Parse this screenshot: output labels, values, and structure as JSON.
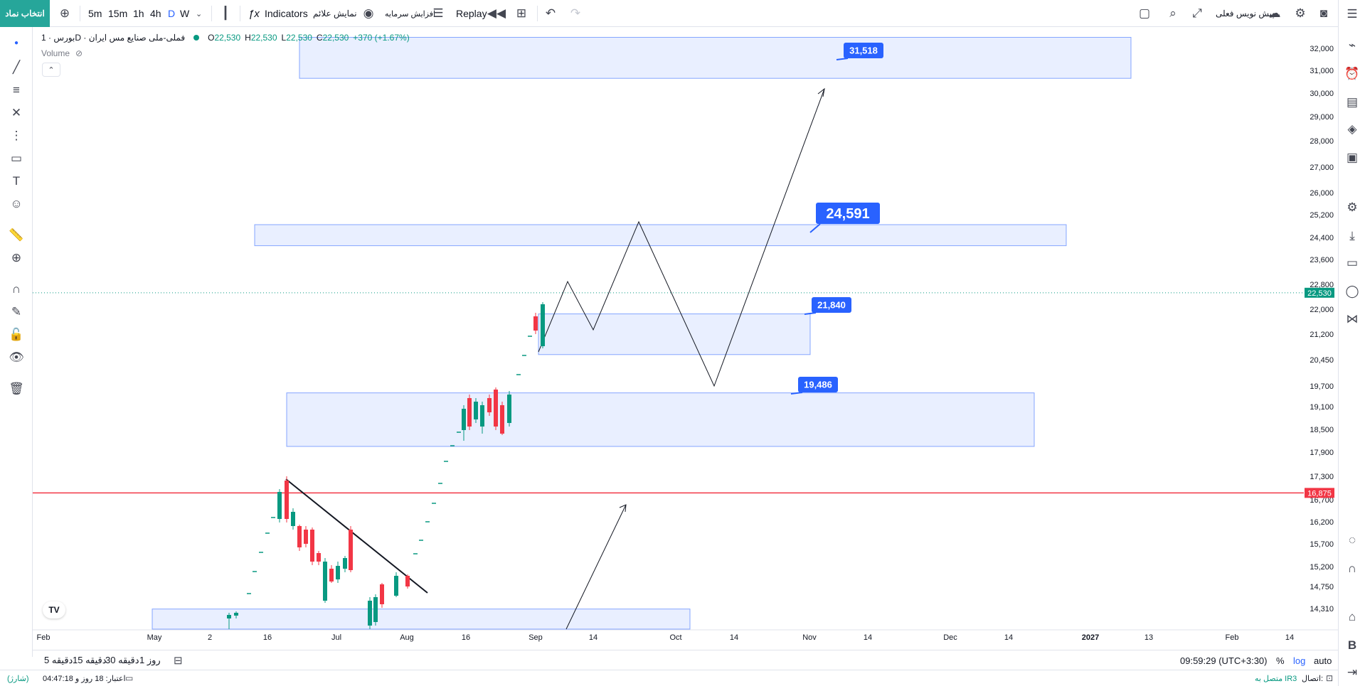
{
  "toolbar": {
    "symbol_button": "انتخاب نماد",
    "intervals": [
      "5m",
      "15m",
      "1h",
      "4h",
      "D",
      "W"
    ],
    "active_interval": "D",
    "indicators_label": "Indicators",
    "show_signals_label": "نمایش علائم",
    "capital_increase_label": "افزایش سرمایه",
    "replay_label": "Replay",
    "right_label": "پیش نویس فعلی"
  },
  "legend": {
    "symbol_title": "بورس · 1D · فملی-ملی صنایع مس ایران",
    "open_label": "O",
    "open": "22,530",
    "high_label": "H",
    "high": "22,530",
    "low_label": "L",
    "low": "22,530",
    "close_label": "C",
    "close": "22,530",
    "change": "+370 (+1.67%)",
    "volume_label": "Volume"
  },
  "colors": {
    "up": "#089981",
    "down": "#f23645",
    "box_fill": "#2962ff",
    "label_bg": "#2962ff",
    "hline": "#f23645",
    "price_line": "#089981"
  },
  "price_axis": {
    "ticks": [
      "32,000",
      "31,000",
      "30,000",
      "29,000",
      "28,000",
      "27,000",
      "26,000",
      "25,200",
      "24,400",
      "23,600",
      "22,800",
      "22,000",
      "21,200",
      "20,450",
      "19,700",
      "19,100",
      "18,500",
      "17,900",
      "17,300",
      "16,700",
      "16,200",
      "15,700",
      "15,200",
      "14,750",
      "14,310"
    ],
    "current_price": "22,530",
    "hline_price": "16,875"
  },
  "time_axis": {
    "ticks": [
      "Feb",
      "May",
      "2",
      "16",
      "Jul",
      "Aug",
      "16",
      "Sep",
      "14",
      "Oct",
      "14",
      "Nov",
      "14",
      "Dec",
      "14",
      "2027",
      "13",
      "Feb",
      "14"
    ]
  },
  "chart_data": {
    "type": "candlestick",
    "price_labels": [
      "31,518",
      "24,591",
      "21,840",
      "19,486"
    ],
    "zones": [
      {
        "from": 30650,
        "to": 32500
      },
      {
        "from": 24100,
        "to": 24850
      },
      {
        "from": 20600,
        "to": 21850
      },
      {
        "from": 18050,
        "to": 19500
      },
      {
        "from": 13800,
        "to": 14300
      }
    ],
    "horizontal_line": 16875,
    "current_price": 22530
  },
  "bottom": {
    "ranges": [
      "5 دقیقه",
      "15 دقیقه",
      "30 دقیقه",
      "1 روز"
    ],
    "time": "09:59:29 (UTC+3:30)",
    "percent": "%",
    "log": "log",
    "auto": "auto",
    "status_label": "اتصال:",
    "status_value": "متصل به IR3",
    "credit": "اعتبار: 18 روز و 04:47:18",
    "credit_note": "(شارژ)"
  }
}
